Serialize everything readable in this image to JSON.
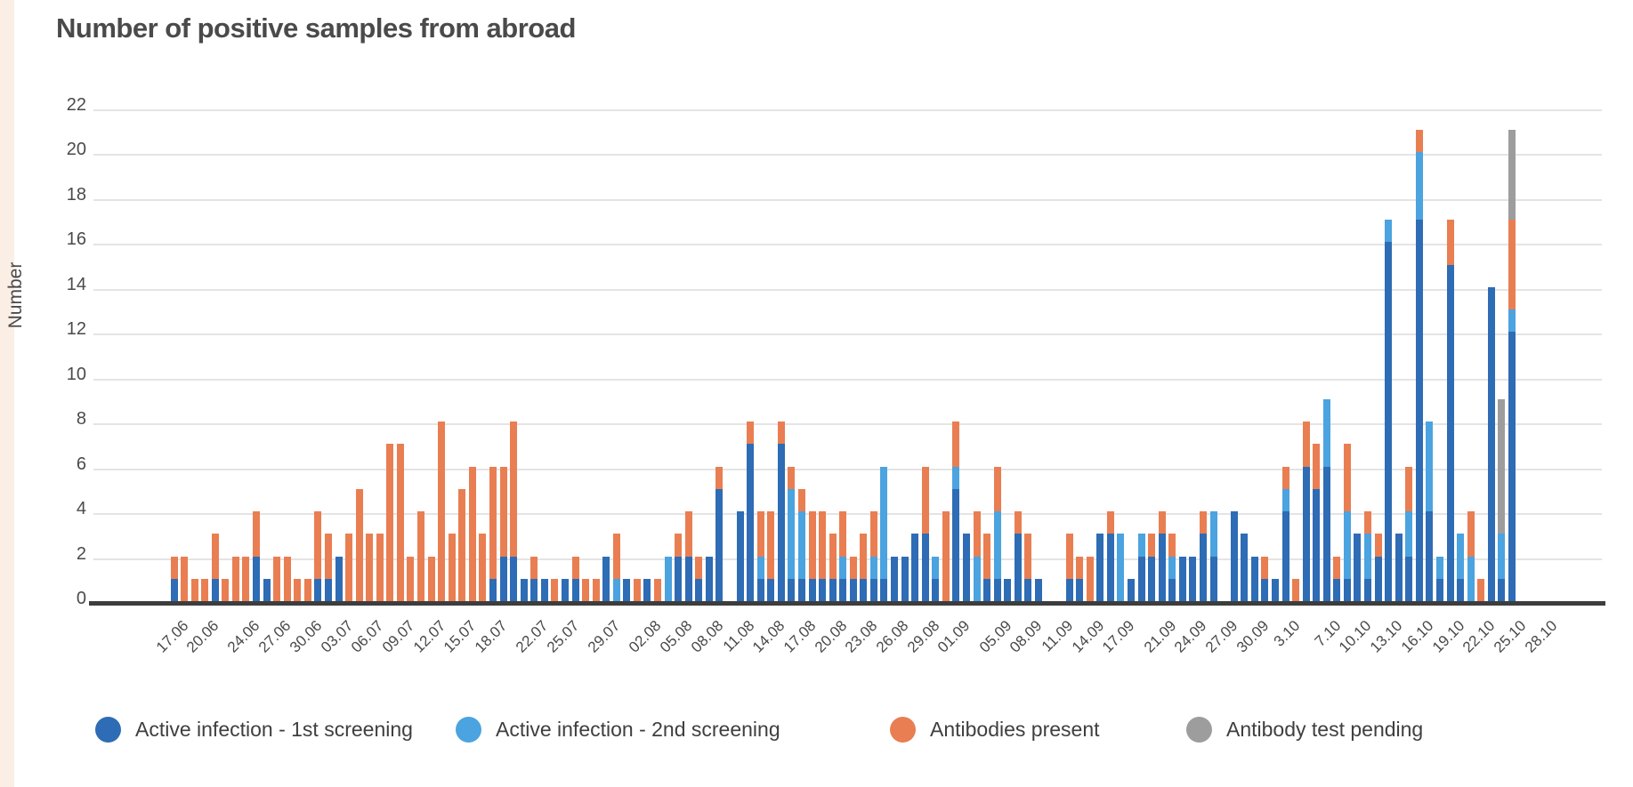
{
  "page": {
    "left_strip_color": "#fbeee4",
    "background": "#ffffff"
  },
  "chart_data": {
    "type": "bar",
    "stacked": true,
    "title": "Number of positive samples from abroad",
    "xlabel": "",
    "ylabel": "Number",
    "ylim": [
      0,
      22
    ],
    "y_ticks": [
      22,
      20,
      18,
      16,
      14,
      12,
      10,
      8,
      6,
      4,
      2,
      0
    ],
    "grid": true,
    "legend_position": "bottom",
    "series": [
      {
        "name": "Active infection - 1st screening",
        "color": "#2e6cb5"
      },
      {
        "name": "Active infection - 2nd screening",
        "color": "#4ba3e0"
      },
      {
        "name": "Antibodies present",
        "color": "#e97e52"
      },
      {
        "name": "Antibody test pending",
        "color": "#9d9d9d"
      }
    ],
    "x_tick_labels": [
      "17.06",
      "20.06",
      "24.06",
      "27.06",
      "30.06",
      "03.07",
      "06.07",
      "09.07",
      "12.07",
      "15.07",
      "18.07",
      "22.07",
      "25.07",
      "29.07",
      "02.08",
      "05.08",
      "08.08",
      "11.08",
      "14.08",
      "17.08",
      "20.08",
      "23.08",
      "26.08",
      "29.08",
      "01.09",
      "05.09",
      "08.09",
      "11.09",
      "14.09",
      "17.09",
      "21.09",
      "24.09",
      "27.09",
      "30.09",
      "3.10",
      "7.10",
      "10.10",
      "13.10",
      "16.10",
      "19.10",
      "22.10",
      "25.10",
      "28.10"
    ],
    "x_tick_bar_indices": [
      0,
      3,
      7,
      10,
      13,
      16,
      19,
      22,
      25,
      28,
      31,
      35,
      38,
      42,
      46,
      49,
      52,
      55,
      58,
      61,
      64,
      67,
      70,
      73,
      76,
      80,
      83,
      86,
      89,
      92,
      96,
      99,
      102,
      105,
      108,
      112,
      115,
      118,
      121,
      124,
      127,
      130,
      133
    ],
    "bar_values_order": [
      "1st screening",
      "2nd screening",
      "antibodies",
      "pending"
    ],
    "bars": [
      [
        1,
        0,
        1,
        0
      ],
      [
        0,
        0,
        2,
        0
      ],
      [
        0,
        0,
        1,
        0
      ],
      [
        0,
        0,
        1,
        0
      ],
      [
        1,
        0,
        2,
        0
      ],
      [
        0,
        0,
        1,
        0
      ],
      [
        0,
        0,
        2,
        0
      ],
      [
        0,
        0,
        2,
        0
      ],
      [
        2,
        0,
        2,
        0
      ],
      [
        1,
        0,
        0,
        0
      ],
      [
        0,
        0,
        2,
        0
      ],
      [
        0,
        0,
        2,
        0
      ],
      [
        0,
        0,
        1,
        0
      ],
      [
        0,
        0,
        1,
        0
      ],
      [
        1,
        0,
        3,
        0
      ],
      [
        1,
        0,
        2,
        0
      ],
      [
        2,
        0,
        0,
        0
      ],
      [
        0,
        0,
        3,
        0
      ],
      [
        0,
        0,
        5,
        0
      ],
      [
        0,
        0,
        3,
        0
      ],
      [
        0,
        0,
        3,
        0
      ],
      [
        0,
        0,
        7,
        0
      ],
      [
        0,
        0,
        7,
        0
      ],
      [
        0,
        0,
        2,
        0
      ],
      [
        0,
        0,
        4,
        0
      ],
      [
        0,
        0,
        2,
        0
      ],
      [
        0,
        0,
        8,
        0
      ],
      [
        0,
        0,
        3,
        0
      ],
      [
        0,
        0,
        5,
        0
      ],
      [
        0,
        0,
        6,
        0
      ],
      [
        0,
        0,
        3,
        0
      ],
      [
        1,
        0,
        5,
        0
      ],
      [
        2,
        0,
        4,
        0
      ],
      [
        2,
        0,
        6,
        0
      ],
      [
        1,
        0,
        0,
        0
      ],
      [
        1,
        0,
        1,
        0
      ],
      [
        1,
        0,
        0,
        0
      ],
      [
        0,
        0,
        1,
        0
      ],
      [
        1,
        0,
        0,
        0
      ],
      [
        1,
        0,
        1,
        0
      ],
      [
        0,
        0,
        1,
        0
      ],
      [
        0,
        0,
        1,
        0
      ],
      [
        2,
        0,
        0,
        0
      ],
      [
        0,
        1,
        2,
        0
      ],
      [
        1,
        0,
        0,
        0
      ],
      [
        0,
        0,
        1,
        0
      ],
      [
        1,
        0,
        0,
        0
      ],
      [
        0,
        0,
        1,
        0
      ],
      [
        0,
        2,
        0,
        0
      ],
      [
        2,
        0,
        1,
        0
      ],
      [
        2,
        0,
        2,
        0
      ],
      [
        1,
        0,
        1,
        0
      ],
      [
        2,
        0,
        0,
        0
      ],
      [
        5,
        0,
        1,
        0
      ],
      [
        0,
        0,
        0,
        0
      ],
      [
        4,
        0,
        0,
        0
      ],
      [
        7,
        0,
        1,
        0
      ],
      [
        1,
        1,
        2,
        0
      ],
      [
        1,
        0,
        3,
        0
      ],
      [
        7,
        0,
        1,
        0
      ],
      [
        1,
        4,
        1,
        0
      ],
      [
        1,
        3,
        1,
        0
      ],
      [
        1,
        0,
        3,
        0
      ],
      [
        1,
        0,
        3,
        0
      ],
      [
        1,
        0,
        2,
        0
      ],
      [
        1,
        1,
        2,
        0
      ],
      [
        1,
        0,
        1,
        0
      ],
      [
        1,
        0,
        2,
        0
      ],
      [
        1,
        1,
        2,
        0
      ],
      [
        1,
        5,
        0,
        0
      ],
      [
        2,
        0,
        0,
        0
      ],
      [
        2,
        0,
        0,
        0
      ],
      [
        3,
        0,
        0,
        0
      ],
      [
        3,
        0,
        3,
        0
      ],
      [
        1,
        1,
        0,
        0
      ],
      [
        0,
        0,
        4,
        0
      ],
      [
        5,
        1,
        2,
        0
      ],
      [
        3,
        0,
        0,
        0
      ],
      [
        0,
        2,
        2,
        0
      ],
      [
        1,
        0,
        2,
        0
      ],
      [
        1,
        3,
        2,
        0
      ],
      [
        1,
        0,
        0,
        0
      ],
      [
        3,
        0,
        1,
        0
      ],
      [
        1,
        0,
        2,
        0
      ],
      [
        1,
        0,
        0,
        0
      ],
      [
        0,
        0,
        0,
        0
      ],
      [
        0,
        0,
        0,
        0
      ],
      [
        1,
        0,
        2,
        0
      ],
      [
        1,
        0,
        1,
        0
      ],
      [
        0,
        0,
        2,
        0
      ],
      [
        3,
        0,
        0,
        0
      ],
      [
        3,
        0,
        1,
        0
      ],
      [
        0,
        3,
        0,
        0
      ],
      [
        1,
        0,
        0,
        0
      ],
      [
        2,
        1,
        0,
        0
      ],
      [
        2,
        0,
        1,
        0
      ],
      [
        3,
        0,
        1,
        0
      ],
      [
        1,
        1,
        1,
        0
      ],
      [
        2,
        0,
        0,
        0
      ],
      [
        2,
        0,
        0,
        0
      ],
      [
        3,
        0,
        1,
        0
      ],
      [
        2,
        2,
        0,
        0
      ],
      [
        0,
        0,
        0,
        0
      ],
      [
        4,
        0,
        0,
        0
      ],
      [
        3,
        0,
        0,
        0
      ],
      [
        2,
        0,
        0,
        0
      ],
      [
        1,
        0,
        1,
        0
      ],
      [
        1,
        0,
        0,
        0
      ],
      [
        4,
        1,
        1,
        0
      ],
      [
        0,
        0,
        1,
        0
      ],
      [
        6,
        0,
        2,
        0
      ],
      [
        5,
        0,
        2,
        0
      ],
      [
        6,
        3,
        0,
        0
      ],
      [
        1,
        0,
        1,
        0
      ],
      [
        1,
        3,
        3,
        0
      ],
      [
        3,
        0,
        0,
        0
      ],
      [
        1,
        2,
        1,
        0
      ],
      [
        2,
        0,
        1,
        0
      ],
      [
        16,
        1,
        0,
        0
      ],
      [
        3,
        0,
        0,
        0
      ],
      [
        2,
        2,
        2,
        0
      ],
      [
        17,
        3,
        1,
        0
      ],
      [
        4,
        4,
        0,
        0
      ],
      [
        1,
        1,
        0,
        0
      ],
      [
        15,
        0,
        2,
        0
      ],
      [
        1,
        2,
        0,
        0
      ],
      [
        0,
        2,
        2,
        0
      ],
      [
        0,
        0,
        1,
        0
      ],
      [
        14,
        0,
        0,
        0
      ],
      [
        1,
        2,
        0,
        6
      ],
      [
        12,
        1,
        4,
        4
      ],
      [
        0,
        0,
        0,
        0
      ],
      [
        0,
        0,
        0,
        0
      ],
      [
        0,
        0,
        0,
        0
      ]
    ]
  },
  "legend": {
    "items": [
      {
        "label": "Active infection - 1st screening",
        "color": "#2e6cb5"
      },
      {
        "label": "Active infection - 2nd screening",
        "color": "#4ba3e0"
      },
      {
        "label": "Antibodies present",
        "color": "#e97e52"
      },
      {
        "label": "Antibody test pending",
        "color": "#9d9d9d"
      }
    ]
  },
  "colors": {
    "accent_dark_blue": "#2e6cb5",
    "accent_light_blue": "#4ba3e0",
    "accent_orange": "#e97e52",
    "accent_gray": "#9d9d9d",
    "gridline": "#e4e4e4",
    "axis": "#3d3d3d",
    "text": "#4a4a4a"
  }
}
